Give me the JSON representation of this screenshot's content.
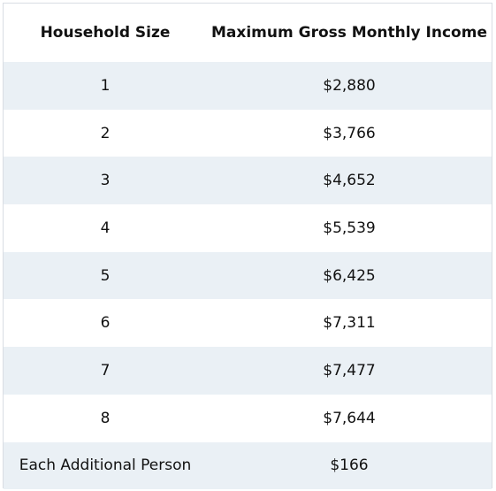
{
  "table": {
    "headers": [
      "Household Size",
      "Maximum Gross Monthly Income"
    ],
    "rows": [
      [
        "1",
        "$2,880"
      ],
      [
        "2",
        "$3,766"
      ],
      [
        "3",
        "$4,652"
      ],
      [
        "4",
        "$5,539"
      ],
      [
        "5",
        "$6,425"
      ],
      [
        "6",
        "$7,311"
      ],
      [
        "7",
        "$7,477"
      ],
      [
        "8",
        "$7,644"
      ],
      [
        "Each Additional Person",
        "$166"
      ]
    ]
  },
  "colors": {
    "stripe": "#eaf0f5",
    "border": "#d9dde3",
    "text": "#111111"
  }
}
